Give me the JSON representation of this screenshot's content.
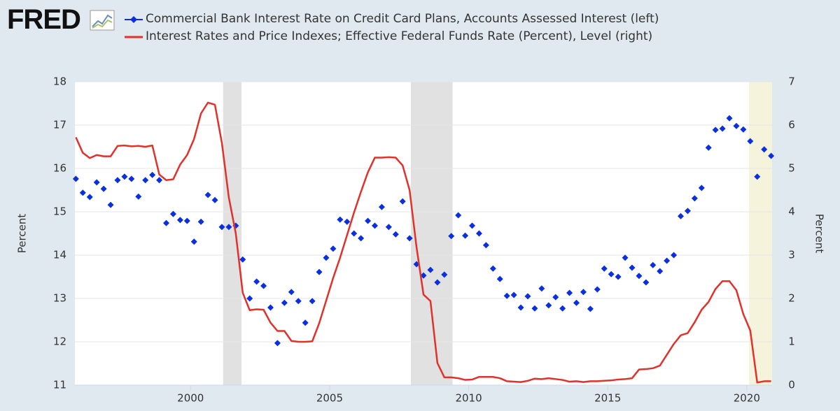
{
  "logo": "FRED",
  "chart_data": {
    "type": "line",
    "x": [
      1995.875,
      1996.125,
      1996.375,
      1996.625,
      1996.875,
      1997.125,
      1997.375,
      1997.625,
      1997.875,
      1998.125,
      1998.375,
      1998.625,
      1998.875,
      1999.125,
      1999.375,
      1999.625,
      1999.875,
      2000.125,
      2000.375,
      2000.625,
      2000.875,
      2001.125,
      2001.375,
      2001.625,
      2001.875,
      2002.125,
      2002.375,
      2002.625,
      2002.875,
      2003.125,
      2003.375,
      2003.625,
      2003.875,
      2004.125,
      2004.375,
      2004.625,
      2004.875,
      2005.125,
      2005.375,
      2005.625,
      2005.875,
      2006.125,
      2006.375,
      2006.625,
      2006.875,
      2007.125,
      2007.375,
      2007.625,
      2007.875,
      2008.125,
      2008.375,
      2008.625,
      2008.875,
      2009.125,
      2009.375,
      2009.625,
      2009.875,
      2010.125,
      2010.375,
      2010.625,
      2010.875,
      2011.125,
      2011.375,
      2011.625,
      2011.875,
      2012.125,
      2012.375,
      2012.625,
      2012.875,
      2013.125,
      2013.375,
      2013.625,
      2013.875,
      2014.125,
      2014.375,
      2014.625,
      2014.875,
      2015.125,
      2015.375,
      2015.625,
      2015.875,
      2016.125,
      2016.375,
      2016.625,
      2016.875,
      2017.125,
      2017.375,
      2017.625,
      2017.875,
      2018.125,
      2018.375,
      2018.625,
      2018.875,
      2019.125,
      2019.375,
      2019.625,
      2019.875,
      2020.125,
      2020.375,
      2020.625,
      2020.875
    ],
    "series": [
      {
        "name": "Commercial Bank Interest Rate on Credit Card Plans, Accounts Assessed Interest (left)",
        "color": "#0a2fe0",
        "axis": "y",
        "style": "markers",
        "values": [
          15.76,
          15.44,
          15.34,
          15.68,
          15.53,
          15.16,
          15.73,
          15.81,
          15.76,
          15.35,
          15.73,
          15.85,
          15.73,
          14.74,
          14.95,
          14.81,
          14.79,
          14.31,
          14.77,
          15.39,
          15.27,
          14.65,
          14.65,
          14.68,
          13.9,
          13.0,
          13.39,
          13.29,
          12.79,
          11.97,
          12.9,
          13.15,
          12.94,
          12.44,
          12.94,
          13.61,
          13.94,
          14.15,
          14.82,
          14.77,
          14.5,
          14.39,
          14.79,
          14.68,
          15.11,
          14.65,
          14.48,
          15.24,
          14.39,
          13.79,
          13.53,
          13.66,
          13.37,
          13.55,
          14.44,
          14.92,
          14.45,
          14.68,
          14.5,
          14.23,
          13.69,
          13.45,
          13.06,
          13.08,
          12.79,
          13.05,
          12.77,
          13.23,
          12.84,
          13.03,
          12.77,
          13.13,
          12.9,
          13.15,
          12.76,
          13.21,
          13.69,
          13.56,
          13.5,
          13.94,
          13.71,
          13.52,
          13.37,
          13.77,
          13.63,
          13.87,
          14.0,
          14.9,
          15.02,
          15.31,
          15.55,
          16.48,
          16.89,
          16.92,
          17.16,
          16.98,
          16.9,
          16.63,
          15.81,
          16.44,
          16.29
        ]
      },
      {
        "name": "Interest Rates and Price Indexes; Effective Federal Funds Rate (Percent), Level (right)",
        "color": "#e0312b",
        "axis": "y2",
        "style": "line",
        "values": [
          5.72,
          5.36,
          5.24,
          5.31,
          5.28,
          5.28,
          5.52,
          5.53,
          5.51,
          5.52,
          5.5,
          5.53,
          4.86,
          4.73,
          4.75,
          5.09,
          5.31,
          5.68,
          6.27,
          6.52,
          6.47,
          5.59,
          4.33,
          3.5,
          2.13,
          1.73,
          1.75,
          1.74,
          1.44,
          1.25,
          1.25,
          1.02,
          1.0,
          1.0,
          1.01,
          1.43,
          1.95,
          2.47,
          2.94,
          3.46,
          3.98,
          4.46,
          4.91,
          5.25,
          5.25,
          5.26,
          5.25,
          5.07,
          4.5,
          3.18,
          2.09,
          1.94,
          0.51,
          0.18,
          0.18,
          0.16,
          0.12,
          0.13,
          0.19,
          0.19,
          0.19,
          0.16,
          0.09,
          0.08,
          0.07,
          0.1,
          0.15,
          0.14,
          0.16,
          0.14,
          0.12,
          0.08,
          0.09,
          0.07,
          0.09,
          0.09,
          0.1,
          0.11,
          0.13,
          0.14,
          0.16,
          0.36,
          0.37,
          0.39,
          0.45,
          0.7,
          0.95,
          1.15,
          1.2,
          1.45,
          1.74,
          1.92,
          2.22,
          2.4,
          2.4,
          2.19,
          1.64,
          1.26,
          0.06,
          0.09,
          0.09
        ]
      }
    ],
    "xlim": [
      1995.84,
      2020.91
    ],
    "xticks": [
      2000,
      2005,
      2010,
      2015,
      2020
    ],
    "ylim": [
      11,
      18
    ],
    "yticks": [
      11,
      12,
      13,
      14,
      15,
      16,
      17,
      18
    ],
    "y2lim": [
      0,
      7
    ],
    "y2ticks": [
      0,
      1,
      2,
      3,
      4,
      5,
      6,
      7
    ],
    "ylabel": "Percent",
    "y2label": "Percent",
    "grid": true,
    "shading": [
      {
        "start": 2001.17,
        "end": 2001.83,
        "color": "#e1e1e1"
      },
      {
        "start": 2007.92,
        "end": 2009.42,
        "color": "#e1e1e1"
      },
      {
        "start": 2020.08,
        "end": 2020.91,
        "color": "#f5f3dc"
      }
    ]
  }
}
